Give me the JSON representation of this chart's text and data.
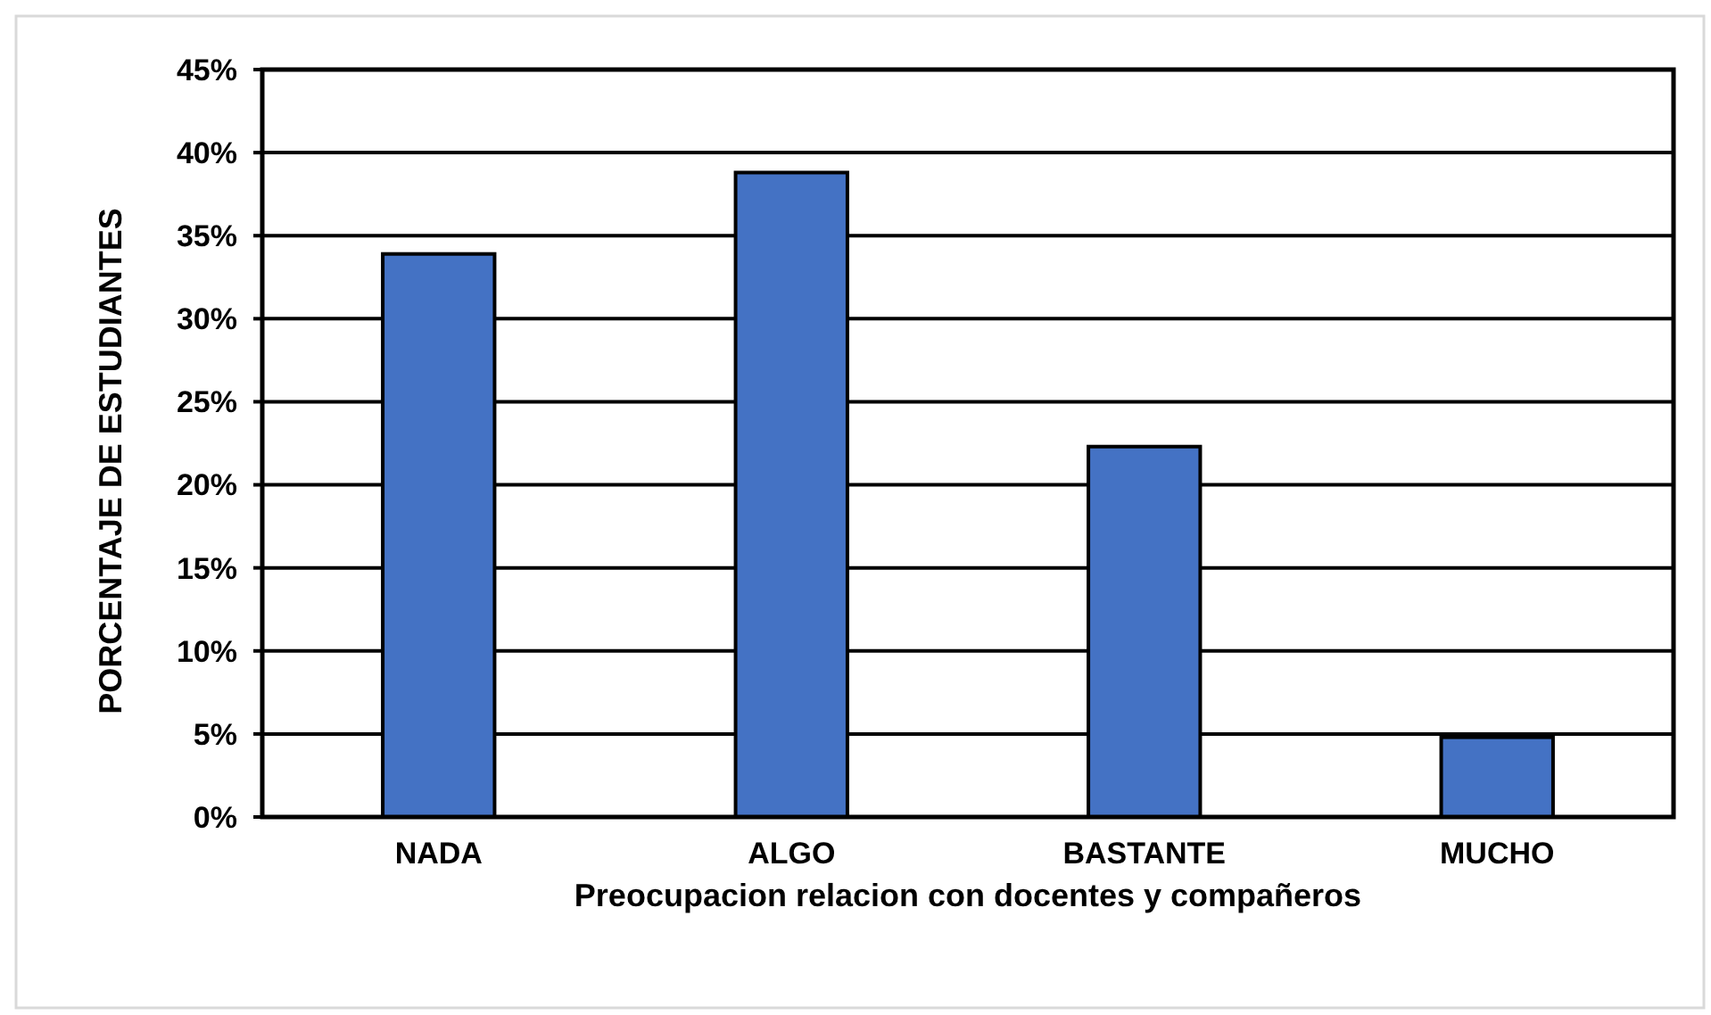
{
  "chart_data": {
    "type": "bar",
    "categories": [
      "NADA",
      "ALGO",
      "BASTANTE",
      "MUCHO"
    ],
    "values": [
      33.9,
      38.8,
      22.3,
      4.8
    ],
    "color": "#4472c4",
    "xlabel": "Preocupacion relacion con docentes y compañeros",
    "ylabel": "PORCENTAJE DE ESTUDIANTES",
    "ylim": [
      0,
      45
    ],
    "yticks": [
      {
        "value": 0,
        "label": "0%"
      },
      {
        "value": 5,
        "label": "5%"
      },
      {
        "value": 10,
        "label": "10%"
      },
      {
        "value": 15,
        "label": "15%"
      },
      {
        "value": 20,
        "label": "20%"
      },
      {
        "value": 25,
        "label": "25%"
      },
      {
        "value": 30,
        "label": "30%"
      },
      {
        "value": 35,
        "label": "35%"
      },
      {
        "value": 40,
        "label": "40%"
      },
      {
        "value": 45,
        "label": "45%"
      }
    ],
    "grid": "y"
  }
}
